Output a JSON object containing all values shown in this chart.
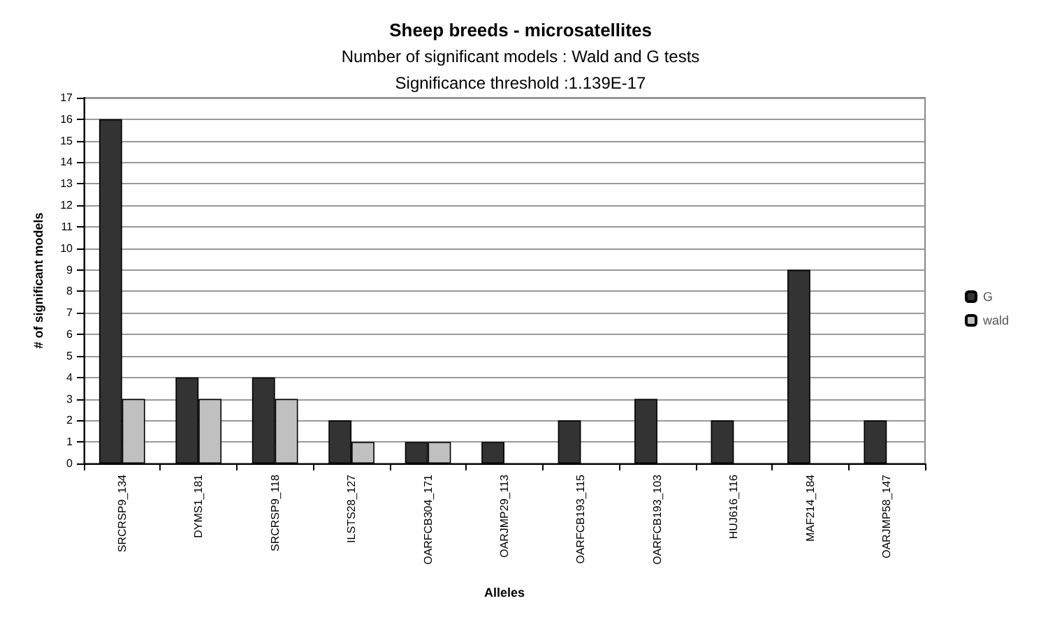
{
  "chart_data": {
    "type": "bar",
    "title": "Sheep breeds - microsatellites",
    "subtitle": "Number of significant models : Wald and G tests\nSignificance threshold :1.139E-17",
    "xlabel": "Alleles",
    "ylabel": "# of significant models",
    "categories": [
      "SRCRSP9_134",
      "DYMS1_181",
      "SRCRSP9_118",
      "ILSTS28_127",
      "OARFCB304_171",
      "OARJMP29_113",
      "OARFCB193_115",
      "OARFCB193_103",
      "HUJ616_116",
      "MAF214_184",
      "OARJMP58_147"
    ],
    "series": [
      {
        "name": "G",
        "color": "#333333",
        "values": [
          16,
          4,
          4,
          2,
          1,
          1,
          2,
          3,
          2,
          9,
          2
        ]
      },
      {
        "name": "wald",
        "color": "#c0c0c0",
        "values": [
          3,
          3,
          3,
          1,
          1,
          null,
          null,
          null,
          null,
          null,
          null
        ]
      }
    ],
    "ylim": [
      0,
      17
    ],
    "yticks": [
      0,
      1,
      2,
      3,
      4,
      5,
      6,
      7,
      8,
      9,
      10,
      11,
      12,
      13,
      14,
      15,
      16,
      17
    ],
    "grid": "y",
    "legend": "right"
  }
}
